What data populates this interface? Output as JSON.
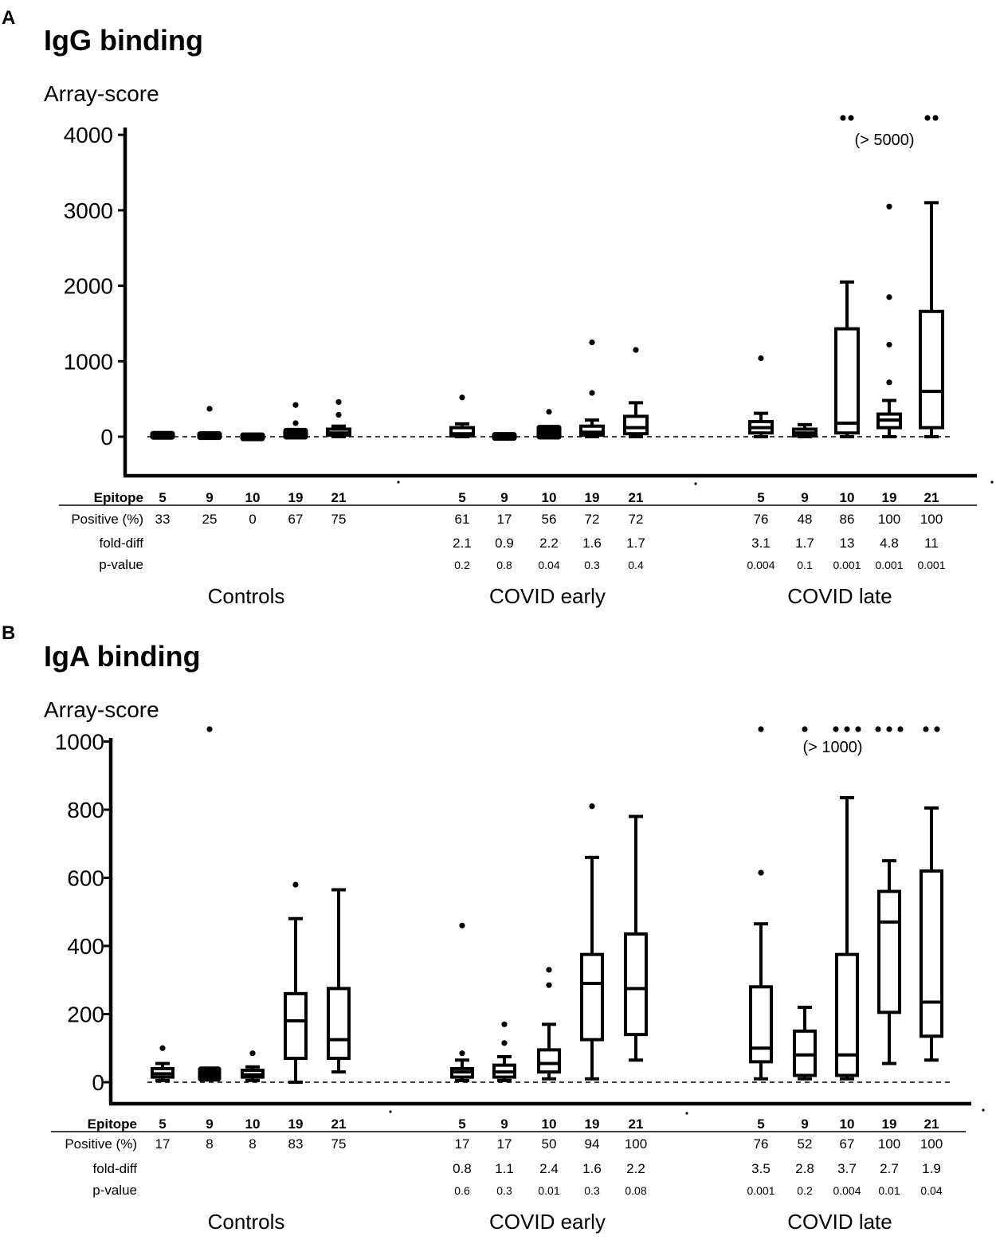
{
  "chart_data": [
    {
      "type": "box",
      "panel": "A",
      "title": "IgG binding",
      "ylabel": "Array-score",
      "ylim": [
        -500,
        4200
      ],
      "yticks": [
        0,
        1000,
        2000,
        3000,
        4000
      ],
      "ytick_labels": [
        "0",
        "1000",
        "2000",
        "3000",
        "4000"
      ],
      "threshold": 0,
      "overflow_note": "(> 5000)",
      "row_labels": {
        "epitope": "Epitope",
        "positive": "Positive (%)",
        "fold": "fold-diff",
        "pvalue": "p-value"
      },
      "groups": [
        {
          "name": "Controls",
          "epitopes": [
            {
              "epitope": "5",
              "positive": "33",
              "fold": "",
              "p": "",
              "min": 0,
              "q1": 5,
              "median": 15,
              "q3": 30,
              "max": 40,
              "outliers": [],
              "over": 0
            },
            {
              "epitope": "9",
              "positive": "25",
              "fold": "",
              "p": "",
              "min": 0,
              "q1": 5,
              "median": 10,
              "q3": 25,
              "max": 35,
              "outliers": [
                370
              ],
              "over": 0
            },
            {
              "epitope": "10",
              "positive": "0",
              "fold": "",
              "p": "",
              "min": 0,
              "q1": 3,
              "median": 8,
              "q3": 15,
              "max": 20,
              "outliers": [],
              "over": 0
            },
            {
              "epitope": "19",
              "positive": "67",
              "fold": "",
              "p": "",
              "min": 0,
              "q1": 10,
              "median": 30,
              "q3": 60,
              "max": 80,
              "outliers": [
                180,
                420
              ],
              "over": 0
            },
            {
              "epitope": "21",
              "positive": "75",
              "fold": "",
              "p": "",
              "min": 0,
              "q1": 20,
              "median": 50,
              "q3": 100,
              "max": 140,
              "outliers": [
                290,
                460
              ],
              "over": 0
            }
          ]
        },
        {
          "name": "COVID early",
          "epitopes": [
            {
              "epitope": "5",
              "positive": "61",
              "fold": "2.1",
              "p": "0.2",
              "min": 0,
              "q1": 10,
              "median": 40,
              "q3": 120,
              "max": 170,
              "outliers": [
                520
              ],
              "over": 0
            },
            {
              "epitope": "9",
              "positive": "17",
              "fold": "0.9",
              "p": "0.8",
              "min": 0,
              "q1": 3,
              "median": 8,
              "q3": 18,
              "max": 25,
              "outliers": [],
              "over": 0
            },
            {
              "epitope": "10",
              "positive": "56",
              "fold": "2.2",
              "p": "0.04",
              "min": 0,
              "q1": 10,
              "median": 40,
              "q3": 80,
              "max": 120,
              "outliers": [
                330
              ],
              "over": 0
            },
            {
              "epitope": "19",
              "positive": "72",
              "fold": "1.6",
              "p": "0.3",
              "min": 0,
              "q1": 20,
              "median": 60,
              "q3": 140,
              "max": 220,
              "outliers": [
                580,
                1250
              ],
              "over": 0
            },
            {
              "epitope": "21",
              "positive": "72",
              "fold": "1.7",
              "p": "0.4",
              "min": 0,
              "q1": 40,
              "median": 120,
              "q3": 270,
              "max": 450,
              "outliers": [
                1150
              ],
              "over": 0
            }
          ]
        },
        {
          "name": "COVID late",
          "epitopes": [
            {
              "epitope": "5",
              "positive": "76",
              "fold": "3.1",
              "p": "0.004",
              "min": 0,
              "q1": 50,
              "median": 120,
              "q3": 200,
              "max": 310,
              "outliers": [
                1040
              ],
              "over": 0
            },
            {
              "epitope": "9",
              "positive": "48",
              "fold": "1.7",
              "p": "0.1",
              "min": 0,
              "q1": 10,
              "median": 50,
              "q3": 100,
              "max": 160,
              "outliers": [],
              "over": 0
            },
            {
              "epitope": "10",
              "positive": "86",
              "fold": "13",
              "p": "0.001",
              "min": 0,
              "q1": 50,
              "median": 180,
              "q3": 1430,
              "max": 2050,
              "outliers": [],
              "over": 2
            },
            {
              "epitope": "19",
              "positive": "100",
              "fold": "4.8",
              "p": "0.001",
              "min": 0,
              "q1": 120,
              "median": 220,
              "q3": 300,
              "max": 480,
              "outliers": [
                720,
                1220,
                1850,
                3050
              ],
              "over": 0
            },
            {
              "epitope": "21",
              "positive": "100",
              "fold": "11",
              "p": "0.001",
              "min": 0,
              "q1": 120,
              "median": 600,
              "q3": 1660,
              "max": 3100,
              "outliers": [],
              "over": 2
            }
          ]
        }
      ]
    },
    {
      "type": "box",
      "panel": "B",
      "title": "IgA binding",
      "ylabel": "Array-score",
      "ylim": [
        -60,
        1040
      ],
      "yticks": [
        0,
        200,
        400,
        600,
        800,
        1000
      ],
      "ytick_labels": [
        "0",
        "200",
        "400",
        "600",
        "800",
        "1000"
      ],
      "threshold": 0,
      "overflow_note": "(> 1000)",
      "row_labels": {
        "epitope": "Epitope",
        "positive": "Positive (%)",
        "fold": "fold-diff",
        "pvalue": "p-value"
      },
      "groups": [
        {
          "name": "Controls",
          "epitopes": [
            {
              "epitope": "5",
              "positive": "17",
              "fold": "",
              "p": "",
              "min": 5,
              "q1": 15,
              "median": 25,
              "q3": 40,
              "max": 55,
              "outliers": [
                100
              ],
              "over": 0
            },
            {
              "epitope": "9",
              "positive": "8",
              "fold": "",
              "p": "",
              "min": 10,
              "q1": 18,
              "median": 25,
              "q3": 32,
              "max": 38,
              "outliers": [],
              "over": 1
            },
            {
              "epitope": "10",
              "positive": "8",
              "fold": "",
              "p": "",
              "min": 5,
              "q1": 15,
              "median": 22,
              "q3": 35,
              "max": 45,
              "outliers": [
                85
              ],
              "over": 0
            },
            {
              "epitope": "19",
              "positive": "83",
              "fold": "",
              "p": "",
              "min": 0,
              "q1": 70,
              "median": 180,
              "q3": 260,
              "max": 480,
              "outliers": [
                580
              ],
              "over": 0
            },
            {
              "epitope": "21",
              "positive": "75",
              "fold": "",
              "p": "",
              "min": 30,
              "q1": 70,
              "median": 125,
              "q3": 275,
              "max": 565,
              "outliers": [],
              "over": 0
            }
          ]
        },
        {
          "name": "COVID early",
          "epitopes": [
            {
              "epitope": "5",
              "positive": "17",
              "fold": "0.8",
              "p": "0.6",
              "min": 5,
              "q1": 15,
              "median": 30,
              "q3": 40,
              "max": 65,
              "outliers": [
                85,
                460
              ],
              "over": 0
            },
            {
              "epitope": "9",
              "positive": "17",
              "fold": "1.1",
              "p": "0.3",
              "min": 5,
              "q1": 15,
              "median": 30,
              "q3": 50,
              "max": 75,
              "outliers": [
                115,
                170
              ],
              "over": 0
            },
            {
              "epitope": "10",
              "positive": "50",
              "fold": "2.4",
              "p": "0.01",
              "min": 10,
              "q1": 30,
              "median": 55,
              "q3": 95,
              "max": 170,
              "outliers": [
                285,
                330
              ],
              "over": 0
            },
            {
              "epitope": "19",
              "positive": "94",
              "fold": "1.6",
              "p": "0.3",
              "min": 10,
              "q1": 125,
              "median": 290,
              "q3": 375,
              "max": 660,
              "outliers": [
                810
              ],
              "over": 0
            },
            {
              "epitope": "21",
              "positive": "100",
              "fold": "2.2",
              "p": "0.08",
              "min": 65,
              "q1": 140,
              "median": 275,
              "q3": 435,
              "max": 780,
              "outliers": [],
              "over": 0
            }
          ]
        },
        {
          "name": "COVID late",
          "epitopes": [
            {
              "epitope": "5",
              "positive": "76",
              "fold": "3.5",
              "p": "0.001",
              "min": 10,
              "q1": 60,
              "median": 100,
              "q3": 280,
              "max": 465,
              "outliers": [
                615
              ],
              "over": 1
            },
            {
              "epitope": "9",
              "positive": "52",
              "fold": "2.8",
              "p": "0.2",
              "min": 10,
              "q1": 20,
              "median": 80,
              "q3": 150,
              "max": 220,
              "outliers": [],
              "over": 1
            },
            {
              "epitope": "10",
              "positive": "67",
              "fold": "3.7",
              "p": "0.004",
              "min": 10,
              "q1": 20,
              "median": 80,
              "q3": 375,
              "max": 835,
              "outliers": [],
              "over": 3
            },
            {
              "epitope": "19",
              "positive": "100",
              "fold": "2.7",
              "p": "0.01",
              "min": 55,
              "q1": 205,
              "median": 470,
              "q3": 560,
              "max": 650,
              "outliers": [],
              "over": 3
            },
            {
              "epitope": "21",
              "positive": "100",
              "fold": "1.9",
              "p": "0.04",
              "min": 65,
              "q1": 135,
              "median": 235,
              "q3": 620,
              "max": 805,
              "outliers": [],
              "over": 2
            }
          ]
        }
      ]
    }
  ]
}
